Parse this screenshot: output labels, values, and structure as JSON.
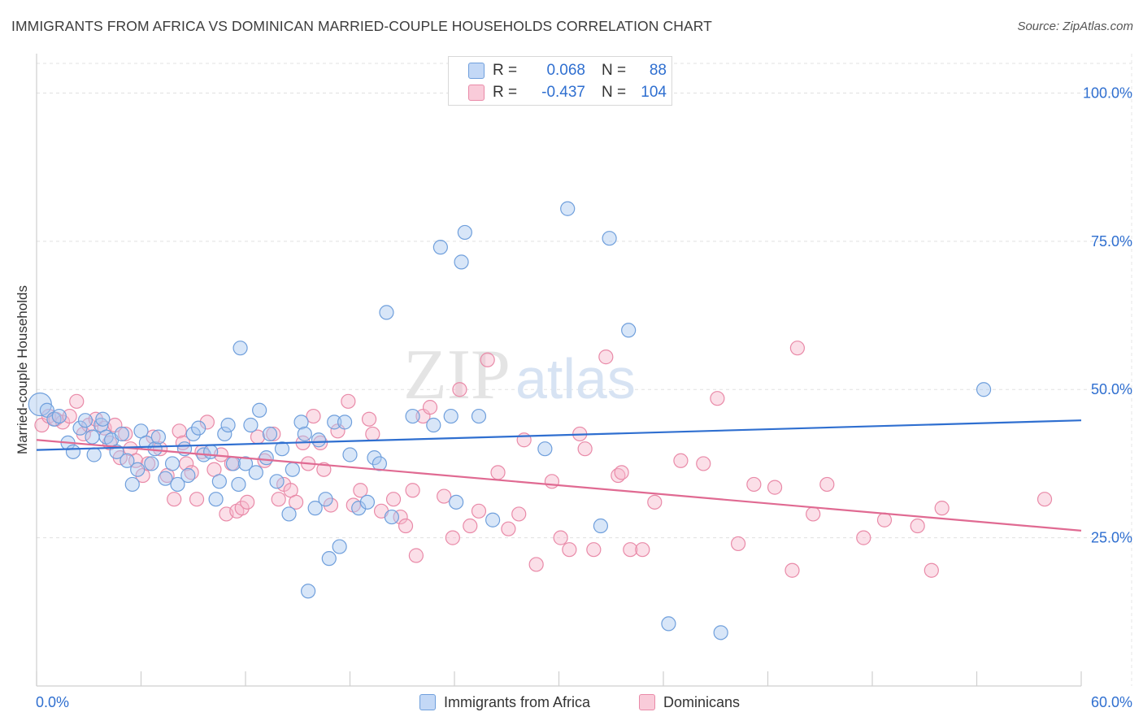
{
  "title": "IMMIGRANTS FROM AFRICA VS DOMINICAN MARRIED-COUPLE HOUSEHOLDS CORRELATION CHART",
  "source": "Source: ZipAtlas.com",
  "watermark": {
    "part1": "ZIP",
    "part2": "atlas"
  },
  "colors": {
    "blue_fill": "#a8c8f0",
    "blue_stroke": "#6f9fdc",
    "blue_line": "#2f6fd0",
    "pink_fill": "#f6b8cb",
    "pink_stroke": "#e98aa8",
    "pink_line": "#e06a92",
    "value_text": "#2f6fd0"
  },
  "stats": [
    {
      "r_label": "R =",
      "r_value": "0.068",
      "n_label": "N =",
      "n_value": "88"
    },
    {
      "r_label": "R =",
      "r_value": "-0.437",
      "n_label": "N =",
      "n_value": "104"
    }
  ],
  "chart_data": {
    "type": "scatter",
    "title": "IMMIGRANTS FROM AFRICA VS DOMINICAN MARRIED-COUPLE HOUSEHOLDS CORRELATION CHART",
    "xlabel": "",
    "ylabel": "Married-couple Households",
    "xlim": [
      0,
      60
    ],
    "ylim": [
      0,
      105
    ],
    "x_tick_labels": [
      "0.0%",
      "60.0%"
    ],
    "y_ticks": [
      25,
      50,
      75,
      100
    ],
    "y_tick_labels": [
      "25.0%",
      "50.0%",
      "75.0%",
      "100.0%"
    ],
    "grid": true,
    "legend_position": "bottom",
    "series": [
      {
        "name": "Immigrants from Africa",
        "color": "blue",
        "trend": {
          "x": [
            0,
            60
          ],
          "y": [
            39.8,
            44.8
          ]
        },
        "points": [
          [
            0.2,
            47.5
          ],
          [
            0.6,
            46.5
          ],
          [
            1.0,
            45.0
          ],
          [
            1.3,
            45.5
          ],
          [
            1.8,
            41.0
          ],
          [
            2.1,
            39.5
          ],
          [
            2.5,
            43.5
          ],
          [
            2.8,
            44.8
          ],
          [
            3.2,
            42.0
          ],
          [
            3.3,
            39.0
          ],
          [
            3.7,
            44.0
          ],
          [
            3.8,
            45.0
          ],
          [
            4.0,
            42.0
          ],
          [
            4.3,
            41.5
          ],
          [
            4.6,
            39.5
          ],
          [
            4.9,
            42.5
          ],
          [
            5.2,
            38.0
          ],
          [
            5.5,
            34.0
          ],
          [
            5.8,
            36.5
          ],
          [
            6.0,
            43.0
          ],
          [
            6.3,
            41.0
          ],
          [
            6.6,
            37.5
          ],
          [
            6.8,
            40.0
          ],
          [
            7.0,
            42.0
          ],
          [
            7.4,
            35.0
          ],
          [
            7.8,
            37.5
          ],
          [
            8.1,
            34.0
          ],
          [
            8.5,
            40.0
          ],
          [
            8.7,
            35.5
          ],
          [
            9.0,
            42.5
          ],
          [
            9.3,
            43.5
          ],
          [
            9.6,
            39.0
          ],
          [
            10.0,
            39.5
          ],
          [
            10.3,
            31.5
          ],
          [
            10.5,
            34.5
          ],
          [
            10.8,
            42.5
          ],
          [
            11.0,
            44.0
          ],
          [
            11.3,
            37.5
          ],
          [
            11.6,
            34.0
          ],
          [
            11.7,
            57.0
          ],
          [
            12.0,
            37.5
          ],
          [
            12.3,
            44.0
          ],
          [
            12.6,
            36.0
          ],
          [
            12.8,
            46.5
          ],
          [
            13.2,
            38.5
          ],
          [
            13.4,
            42.5
          ],
          [
            13.8,
            34.5
          ],
          [
            14.1,
            40.0
          ],
          [
            14.5,
            29.0
          ],
          [
            14.7,
            36.5
          ],
          [
            15.2,
            44.5
          ],
          [
            15.4,
            42.5
          ],
          [
            15.6,
            16.0
          ],
          [
            16.0,
            30.0
          ],
          [
            16.2,
            41.5
          ],
          [
            16.6,
            31.5
          ],
          [
            16.8,
            21.5
          ],
          [
            17.1,
            44.5
          ],
          [
            17.4,
            23.5
          ],
          [
            17.7,
            44.5
          ],
          [
            18.0,
            39.0
          ],
          [
            18.5,
            30.0
          ],
          [
            19.0,
            31.0
          ],
          [
            19.4,
            38.5
          ],
          [
            19.7,
            37.5
          ],
          [
            20.1,
            63.0
          ],
          [
            20.4,
            28.5
          ],
          [
            21.6,
            45.5
          ],
          [
            22.8,
            44.0
          ],
          [
            23.2,
            74.0
          ],
          [
            23.8,
            45.5
          ],
          [
            24.1,
            31.0
          ],
          [
            24.4,
            71.5
          ],
          [
            24.6,
            76.5
          ],
          [
            25.4,
            45.5
          ],
          [
            26.2,
            28.0
          ],
          [
            29.2,
            40.0
          ],
          [
            30.5,
            80.5
          ],
          [
            32.4,
            27.0
          ],
          [
            32.9,
            75.5
          ],
          [
            34.0,
            60.0
          ],
          [
            36.3,
            10.5
          ],
          [
            39.3,
            9.0
          ],
          [
            54.4,
            50.0
          ]
        ]
      },
      {
        "name": "Dominicans",
        "color": "pink",
        "trend": {
          "x": [
            0,
            60
          ],
          "y": [
            41.5,
            26.2
          ]
        },
        "points": [
          [
            0.3,
            44.0
          ],
          [
            0.7,
            45.5
          ],
          [
            1.1,
            45.0
          ],
          [
            1.5,
            44.5
          ],
          [
            1.9,
            45.5
          ],
          [
            2.3,
            48.0
          ],
          [
            2.7,
            42.5
          ],
          [
            3.0,
            44.0
          ],
          [
            3.4,
            45.0
          ],
          [
            3.9,
            43.5
          ],
          [
            4.2,
            41.0
          ],
          [
            4.5,
            44.0
          ],
          [
            4.8,
            38.5
          ],
          [
            5.1,
            42.5
          ],
          [
            5.4,
            40.0
          ],
          [
            5.7,
            38.0
          ],
          [
            6.1,
            35.5
          ],
          [
            6.4,
            37.5
          ],
          [
            6.7,
            42.0
          ],
          [
            7.1,
            40.0
          ],
          [
            7.5,
            35.5
          ],
          [
            7.9,
            31.5
          ],
          [
            8.2,
            43.0
          ],
          [
            8.4,
            41.0
          ],
          [
            8.6,
            37.5
          ],
          [
            8.9,
            36.0
          ],
          [
            9.2,
            31.5
          ],
          [
            9.5,
            39.5
          ],
          [
            9.8,
            44.5
          ],
          [
            10.2,
            36.5
          ],
          [
            10.6,
            39.0
          ],
          [
            10.9,
            29.0
          ],
          [
            11.2,
            37.5
          ],
          [
            11.5,
            29.5
          ],
          [
            11.8,
            30.0
          ],
          [
            12.1,
            31.0
          ],
          [
            12.7,
            42.0
          ],
          [
            13.1,
            38.0
          ],
          [
            13.6,
            42.5
          ],
          [
            13.9,
            31.5
          ],
          [
            14.2,
            34.0
          ],
          [
            14.6,
            33.0
          ],
          [
            14.9,
            31.0
          ],
          [
            15.3,
            41.0
          ],
          [
            15.6,
            37.5
          ],
          [
            15.9,
            45.5
          ],
          [
            16.3,
            41.0
          ],
          [
            16.5,
            36.5
          ],
          [
            16.9,
            30.5
          ],
          [
            17.3,
            43.0
          ],
          [
            17.9,
            48.0
          ],
          [
            18.2,
            30.5
          ],
          [
            18.6,
            33.0
          ],
          [
            19.1,
            45.0
          ],
          [
            19.3,
            42.5
          ],
          [
            19.8,
            29.5
          ],
          [
            20.5,
            31.5
          ],
          [
            20.9,
            28.5
          ],
          [
            21.2,
            27.0
          ],
          [
            21.6,
            33.0
          ],
          [
            21.8,
            22.0
          ],
          [
            22.2,
            45.5
          ],
          [
            22.6,
            47.0
          ],
          [
            23.4,
            32.0
          ],
          [
            23.9,
            25.0
          ],
          [
            24.3,
            50.0
          ],
          [
            24.9,
            27.0
          ],
          [
            25.4,
            29.5
          ],
          [
            25.9,
            55.0
          ],
          [
            26.5,
            36.0
          ],
          [
            27.1,
            26.5
          ],
          [
            27.7,
            29.0
          ],
          [
            28.0,
            41.5
          ],
          [
            28.7,
            20.5
          ],
          [
            29.6,
            34.5
          ],
          [
            30.1,
            25.0
          ],
          [
            30.6,
            23.0
          ],
          [
            31.2,
            42.5
          ],
          [
            31.5,
            40.0
          ],
          [
            32.0,
            23.0
          ],
          [
            32.7,
            55.5
          ],
          [
            33.4,
            35.5
          ],
          [
            33.6,
            36.0
          ],
          [
            34.1,
            23.0
          ],
          [
            34.8,
            23.0
          ],
          [
            35.5,
            31.0
          ],
          [
            37.0,
            38.0
          ],
          [
            38.3,
            37.5
          ],
          [
            39.1,
            48.5
          ],
          [
            40.3,
            24.0
          ],
          [
            41.2,
            34.0
          ],
          [
            42.4,
            33.5
          ],
          [
            43.4,
            19.5
          ],
          [
            43.7,
            57.0
          ],
          [
            44.6,
            29.0
          ],
          [
            45.4,
            34.0
          ],
          [
            47.5,
            25.0
          ],
          [
            48.7,
            28.0
          ],
          [
            50.6,
            27.0
          ],
          [
            51.4,
            19.5
          ],
          [
            52.0,
            30.0
          ],
          [
            57.9,
            31.5
          ]
        ]
      }
    ]
  }
}
